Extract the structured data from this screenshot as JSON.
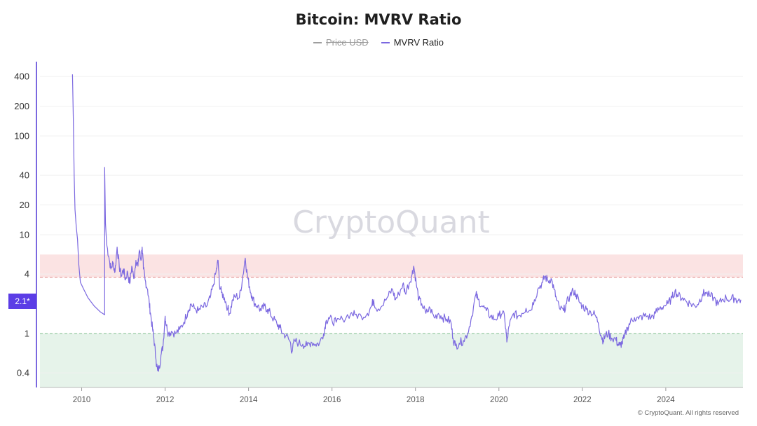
{
  "chart_data": {
    "type": "line",
    "title": "Bitcoin: MVRV Ratio",
    "legend": [
      {
        "name": "Price USD",
        "color": "#9e9e9e",
        "hidden": true
      },
      {
        "name": "MVRV Ratio",
        "color": "#7b68e0",
        "hidden": false
      }
    ],
    "y_scale": "log",
    "ylim": [
      0.25,
      500
    ],
    "y_ticks": [
      {
        "value": 400,
        "label": "400"
      },
      {
        "value": 200,
        "label": "200"
      },
      {
        "value": 100,
        "label": "100"
      },
      {
        "value": 40,
        "label": "40"
      },
      {
        "value": 20,
        "label": "20"
      },
      {
        "value": 10,
        "label": "10"
      },
      {
        "value": 4,
        "label": "4"
      },
      {
        "value": 1,
        "label": "1"
      },
      {
        "value": 0.4,
        "label": "0.4"
      }
    ],
    "xlim": [
      2009.0,
      2025.85
    ],
    "x_ticks": [
      {
        "value": 2010,
        "label": "2010"
      },
      {
        "value": 2012,
        "label": "2012"
      },
      {
        "value": 2014,
        "label": "2014"
      },
      {
        "value": 2016,
        "label": "2016"
      },
      {
        "value": 2018,
        "label": "2018"
      },
      {
        "value": 2020,
        "label": "2020"
      },
      {
        "value": 2022,
        "label": "2022"
      },
      {
        "value": 2024,
        "label": "2024"
      }
    ],
    "bands": [
      {
        "name": "overvalued",
        "from": 3.7,
        "to": 6.3,
        "color": "#fbe3e3"
      },
      {
        "name": "undervalued",
        "from": 0.25,
        "to": 1.0,
        "color": "#e6f3ea"
      }
    ],
    "threshold_lines": [
      {
        "value": 3.7,
        "color": "#e08a8a"
      },
      {
        "value": 1.0,
        "color": "#7fbf8c"
      }
    ],
    "current_value_label": "2.1*",
    "grid": true,
    "legend_placement": "top-center",
    "series": [
      {
        "name": "MVRV Ratio",
        "color": "#7b68e0",
        "points": [
          [
            2009.78,
            420
          ],
          [
            2009.8,
            150
          ],
          [
            2009.82,
            40
          ],
          [
            2009.84,
            18
          ],
          [
            2009.87,
            12
          ],
          [
            2009.9,
            9
          ],
          [
            2009.93,
            5
          ],
          [
            2009.97,
            3.3
          ],
          [
            2010.05,
            2.8
          ],
          [
            2010.15,
            2.3
          ],
          [
            2010.3,
            1.9
          ],
          [
            2010.45,
            1.65
          ],
          [
            2010.55,
            1.55
          ],
          [
            2010.55,
            48
          ],
          [
            2010.57,
            13
          ],
          [
            2010.6,
            8
          ],
          [
            2010.65,
            6
          ],
          [
            2010.7,
            4.5
          ],
          [
            2010.75,
            5.2
          ],
          [
            2010.8,
            4.2
          ],
          [
            2010.85,
            7.5
          ],
          [
            2010.9,
            4.8
          ],
          [
            2010.95,
            3.8
          ],
          [
            2011.0,
            4.5
          ],
          [
            2011.05,
            3.5
          ],
          [
            2011.1,
            4.2
          ],
          [
            2011.15,
            3.2
          ],
          [
            2011.2,
            4.8
          ],
          [
            2011.25,
            3.6
          ],
          [
            2011.3,
            5.5
          ],
          [
            2011.35,
            4.8
          ],
          [
            2011.38,
            7.0
          ],
          [
            2011.42,
            5.5
          ],
          [
            2011.45,
            7.5
          ],
          [
            2011.48,
            4.5
          ],
          [
            2011.52,
            3.5
          ],
          [
            2011.58,
            2.8
          ],
          [
            2011.62,
            2.0
          ],
          [
            2011.65,
            1.6
          ],
          [
            2011.7,
            1.1
          ],
          [
            2011.73,
            0.9
          ],
          [
            2011.78,
            0.55
          ],
          [
            2011.82,
            0.42
          ],
          [
            2011.86,
            0.45
          ],
          [
            2011.9,
            0.6
          ],
          [
            2011.95,
            0.75
          ],
          [
            2012.0,
            1.5
          ],
          [
            2012.03,
            1.2
          ],
          [
            2012.08,
            1.0
          ],
          [
            2012.15,
            1.05
          ],
          [
            2012.25,
            1.0
          ],
          [
            2012.35,
            1.1
          ],
          [
            2012.45,
            1.3
          ],
          [
            2012.55,
            1.7
          ],
          [
            2012.62,
            2.0
          ],
          [
            2012.7,
            1.8
          ],
          [
            2012.8,
            1.7
          ],
          [
            2012.9,
            1.85
          ],
          [
            2013.0,
            1.9
          ],
          [
            2013.08,
            2.3
          ],
          [
            2013.15,
            3.0
          ],
          [
            2013.22,
            4.2
          ],
          [
            2013.27,
            5.5
          ],
          [
            2013.3,
            3.2
          ],
          [
            2013.35,
            2.6
          ],
          [
            2013.42,
            2.3
          ],
          [
            2013.5,
            1.8
          ],
          [
            2013.55,
            1.6
          ],
          [
            2013.62,
            2.2
          ],
          [
            2013.7,
            2.4
          ],
          [
            2013.78,
            2.3
          ],
          [
            2013.85,
            3.5
          ],
          [
            2013.92,
            5.8
          ],
          [
            2013.97,
            3.9
          ],
          [
            2014.02,
            3.0
          ],
          [
            2014.08,
            2.4
          ],
          [
            2014.15,
            2.0
          ],
          [
            2014.22,
            1.9
          ],
          [
            2014.3,
            1.7
          ],
          [
            2014.38,
            1.9
          ],
          [
            2014.45,
            1.75
          ],
          [
            2014.52,
            1.6
          ],
          [
            2014.6,
            1.4
          ],
          [
            2014.68,
            1.25
          ],
          [
            2014.75,
            1.15
          ],
          [
            2014.82,
            1.0
          ],
          [
            2014.9,
            0.95
          ],
          [
            2015.0,
            0.82
          ],
          [
            2015.04,
            0.65
          ],
          [
            2015.1,
            0.85
          ],
          [
            2015.2,
            0.8
          ],
          [
            2015.3,
            0.78
          ],
          [
            2015.4,
            0.75
          ],
          [
            2015.5,
            0.82
          ],
          [
            2015.6,
            0.78
          ],
          [
            2015.7,
            0.8
          ],
          [
            2015.8,
            1.0
          ],
          [
            2015.85,
            1.3
          ],
          [
            2015.92,
            1.45
          ],
          [
            2016.0,
            1.35
          ],
          [
            2016.1,
            1.3
          ],
          [
            2016.25,
            1.4
          ],
          [
            2016.45,
            1.6
          ],
          [
            2016.55,
            1.55
          ],
          [
            2016.7,
            1.5
          ],
          [
            2016.85,
            1.6
          ],
          [
            2016.95,
            1.9
          ],
          [
            2017.0,
            2.2
          ],
          [
            2017.05,
            1.8
          ],
          [
            2017.2,
            1.9
          ],
          [
            2017.35,
            2.4
          ],
          [
            2017.45,
            2.8
          ],
          [
            2017.52,
            2.2
          ],
          [
            2017.6,
            2.5
          ],
          [
            2017.7,
            3.2
          ],
          [
            2017.75,
            2.6
          ],
          [
            2017.85,
            3.2
          ],
          [
            2017.92,
            4.0
          ],
          [
            2017.96,
            4.8
          ],
          [
            2018.02,
            3.2
          ],
          [
            2018.08,
            2.2
          ],
          [
            2018.15,
            2.0
          ],
          [
            2018.25,
            1.6
          ],
          [
            2018.35,
            1.8
          ],
          [
            2018.45,
            1.45
          ],
          [
            2018.55,
            1.6
          ],
          [
            2018.65,
            1.45
          ],
          [
            2018.75,
            1.4
          ],
          [
            2018.85,
            1.3
          ],
          [
            2018.9,
            0.9
          ],
          [
            2018.96,
            0.75
          ],
          [
            2019.05,
            0.8
          ],
          [
            2019.15,
            0.85
          ],
          [
            2019.25,
            1.0
          ],
          [
            2019.35,
            1.5
          ],
          [
            2019.45,
            2.5
          ],
          [
            2019.5,
            2.2
          ],
          [
            2019.6,
            1.9
          ],
          [
            2019.7,
            1.7
          ],
          [
            2019.8,
            1.5
          ],
          [
            2019.9,
            1.4
          ],
          [
            2020.0,
            1.5
          ],
          [
            2020.1,
            1.7
          ],
          [
            2020.17,
            1.1
          ],
          [
            2020.19,
            0.82
          ],
          [
            2020.25,
            1.2
          ],
          [
            2020.35,
            1.6
          ],
          [
            2020.45,
            1.5
          ],
          [
            2020.55,
            1.6
          ],
          [
            2020.65,
            1.8
          ],
          [
            2020.75,
            1.7
          ],
          [
            2020.85,
            2.2
          ],
          [
            2020.95,
            2.9
          ],
          [
            2021.05,
            3.3
          ],
          [
            2021.1,
            3.8
          ],
          [
            2021.18,
            3.4
          ],
          [
            2021.25,
            3.6
          ],
          [
            2021.32,
            2.8
          ],
          [
            2021.38,
            2.2
          ],
          [
            2021.45,
            1.8
          ],
          [
            2021.55,
            1.7
          ],
          [
            2021.62,
            2.0
          ],
          [
            2021.7,
            2.4
          ],
          [
            2021.78,
            2.7
          ],
          [
            2021.85,
            2.5
          ],
          [
            2021.92,
            2.1
          ],
          [
            2022.0,
            1.9
          ],
          [
            2022.1,
            1.75
          ],
          [
            2022.2,
            1.65
          ],
          [
            2022.3,
            1.55
          ],
          [
            2022.38,
            1.3
          ],
          [
            2022.45,
            0.95
          ],
          [
            2022.5,
            0.85
          ],
          [
            2022.55,
            0.95
          ],
          [
            2022.62,
            1.0
          ],
          [
            2022.7,
            0.9
          ],
          [
            2022.8,
            0.88
          ],
          [
            2022.85,
            0.78
          ],
          [
            2022.9,
            0.76
          ],
          [
            2022.95,
            0.8
          ],
          [
            2023.0,
            0.9
          ],
          [
            2023.08,
            1.15
          ],
          [
            2023.15,
            1.3
          ],
          [
            2023.25,
            1.45
          ],
          [
            2023.35,
            1.4
          ],
          [
            2023.45,
            1.5
          ],
          [
            2023.55,
            1.5
          ],
          [
            2023.65,
            1.45
          ],
          [
            2023.75,
            1.6
          ],
          [
            2023.85,
            1.8
          ],
          [
            2023.95,
            1.9
          ],
          [
            2024.05,
            2.0
          ],
          [
            2024.15,
            2.3
          ],
          [
            2024.22,
            2.7
          ],
          [
            2024.3,
            2.4
          ],
          [
            2024.4,
            2.3
          ],
          [
            2024.5,
            2.1
          ],
          [
            2024.6,
            2.0
          ],
          [
            2024.7,
            1.9
          ],
          [
            2024.8,
            2.1
          ],
          [
            2024.88,
            2.5
          ],
          [
            2024.95,
            2.6
          ],
          [
            2025.05,
            2.4
          ],
          [
            2025.15,
            2.3
          ],
          [
            2025.25,
            1.95
          ],
          [
            2025.35,
            2.2
          ],
          [
            2025.45,
            2.3
          ],
          [
            2025.55,
            2.2
          ],
          [
            2025.65,
            2.3
          ],
          [
            2025.72,
            2.15
          ],
          [
            2025.8,
            2.2
          ]
        ]
      }
    ]
  },
  "watermark": "CryptoQuant",
  "copyright": "© CryptoQuant. All rights reserved"
}
